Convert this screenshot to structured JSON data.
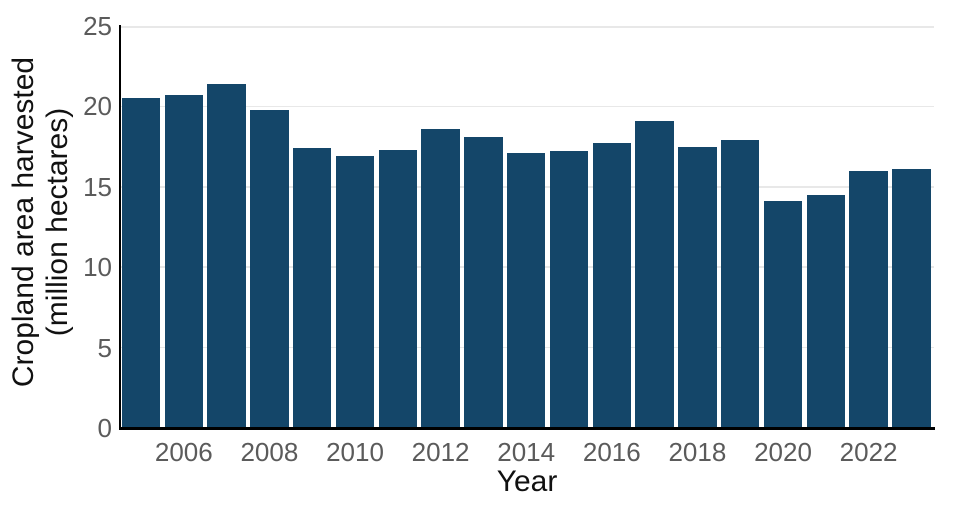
{
  "chart_data": {
    "type": "bar",
    "x": [
      2005,
      2006,
      2007,
      2008,
      2009,
      2010,
      2011,
      2012,
      2013,
      2014,
      2015,
      2016,
      2017,
      2018,
      2019,
      2020,
      2021,
      2022,
      2023
    ],
    "values": [
      20.5,
      20.7,
      21.4,
      19.8,
      17.4,
      16.9,
      17.3,
      18.6,
      18.1,
      17.1,
      17.2,
      17.7,
      19.1,
      17.5,
      17.9,
      14.1,
      14.5,
      16.0,
      16.1
    ],
    "title": "",
    "xlabel": "Year",
    "ylabel": "Cropland area harvested (million hectares)",
    "ylabel_lines": [
      "Cropland area harvested",
      "(million hectares)"
    ],
    "ylim": [
      0,
      25
    ],
    "yticks": [
      0,
      5,
      10,
      15,
      20,
      25
    ],
    "xticks": [
      2006,
      2008,
      2010,
      2012,
      2014,
      2016,
      2018,
      2020,
      2022
    ],
    "grid": true,
    "legend": "none",
    "colors": {
      "bar": "#144669",
      "gridline": "#e8e8e8",
      "tick_label": "#5b5b5b",
      "axis_label": "#111111",
      "axis_line": "#000000",
      "background": "#ffffff"
    }
  }
}
